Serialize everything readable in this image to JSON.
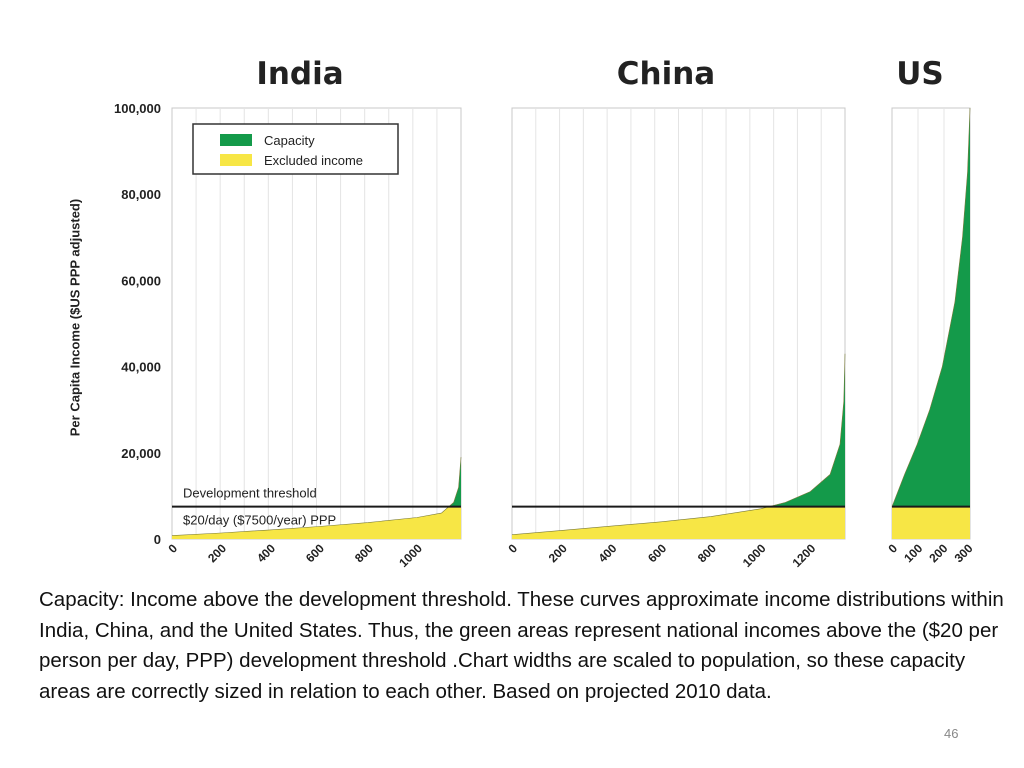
{
  "chart_data": {
    "type": "area",
    "ylabel": "Per Capita Income ($US PPP adjusted)",
    "ylim": [
      0,
      100000
    ],
    "yticks": [
      "0",
      "20,000",
      "40,000",
      "60,000",
      "80,000",
      "100,000"
    ],
    "legend": [
      {
        "label": "Capacity",
        "color": "#149a4a"
      },
      {
        "label": "Excluded income",
        "color": "#f7e645"
      }
    ],
    "legend_position": "top-left (India panel)",
    "threshold": {
      "value": 7500,
      "label_line1": "Development threshold",
      "label_line2": "$20/day ($7500/year) PPP"
    },
    "grid": true,
    "panels": [
      {
        "name": "India",
        "x_max": 1180,
        "xticks": [
          "0",
          "200",
          "400",
          "600",
          "800",
          "1000"
        ],
        "curve": [
          [
            0,
            800
          ],
          [
            200,
            1400
          ],
          [
            400,
            2100
          ],
          [
            600,
            2900
          ],
          [
            800,
            3800
          ],
          [
            1000,
            5000
          ],
          [
            1100,
            6000
          ],
          [
            1150,
            8500
          ],
          [
            1170,
            12000
          ],
          [
            1180,
            19000
          ]
        ]
      },
      {
        "name": "China",
        "x_max": 1340,
        "xticks": [
          "0",
          "200",
          "400",
          "600",
          "800",
          "1000",
          "1200"
        ],
        "curve": [
          [
            0,
            1000
          ],
          [
            200,
            2000
          ],
          [
            400,
            3000
          ],
          [
            600,
            4000
          ],
          [
            800,
            5200
          ],
          [
            1000,
            7000
          ],
          [
            1100,
            8500
          ],
          [
            1200,
            11000
          ],
          [
            1280,
            15000
          ],
          [
            1320,
            22000
          ],
          [
            1335,
            32000
          ],
          [
            1340,
            43000
          ]
        ]
      },
      {
        "name": "US",
        "x_max": 310,
        "xticks": [
          "0",
          "100",
          "200",
          "300"
        ],
        "curve": [
          [
            0,
            7500
          ],
          [
            50,
            15000
          ],
          [
            100,
            22000
          ],
          [
            150,
            30000
          ],
          [
            200,
            40000
          ],
          [
            250,
            55000
          ],
          [
            280,
            70000
          ],
          [
            300,
            85000
          ],
          [
            310,
            100000
          ]
        ]
      }
    ]
  },
  "caption": "Capacity: Income above the development threshold. These curves approximate income distributions within India, China, and the United States. Thus, the green areas represent national incomes above the ($20 per person per day, PPP) development threshold .Chart widths are scaled to population, so these capacity areas are correctly sized in relation to each other. Based on projected 2010 data.",
  "page_number": "46"
}
